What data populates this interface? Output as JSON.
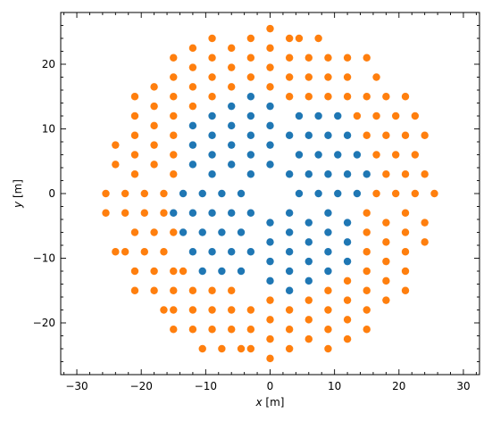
{
  "chart_data": {
    "type": "scatter",
    "title": "",
    "xlabel": "x [m]",
    "ylabel": "y [m]",
    "xlim": [
      -32.5,
      32.5
    ],
    "ylim": [
      -28,
      28
    ],
    "xticks": [
      -30,
      -20,
      -10,
      0,
      10,
      20,
      30
    ],
    "yticks": [
      -20,
      -10,
      0,
      10,
      20
    ],
    "grid": false,
    "legend": "none",
    "series": [
      {
        "color": "#1f77b4",
        "points": [
          [
            0,
            4.5
          ],
          [
            0,
            7.5
          ],
          [
            0,
            10.5
          ],
          [
            0,
            13.5
          ],
          [
            -3,
            3
          ],
          [
            -3,
            6
          ],
          [
            -3,
            9
          ],
          [
            -3,
            12
          ],
          [
            -3,
            15
          ],
          [
            -6,
            4.5
          ],
          [
            -6,
            7.5
          ],
          [
            -6,
            10.5
          ],
          [
            -6,
            13.5
          ],
          [
            -9,
            3
          ],
          [
            -9,
            6
          ],
          [
            -9,
            9
          ],
          [
            -9,
            12
          ],
          [
            -12,
            4.5
          ],
          [
            -12,
            7.5
          ],
          [
            -12,
            10.5
          ],
          [
            3,
            3
          ],
          [
            6,
            3
          ],
          [
            9,
            3
          ],
          [
            12,
            3
          ],
          [
            15,
            3
          ],
          [
            4.5,
            0
          ],
          [
            7.5,
            0
          ],
          [
            10.5,
            0
          ],
          [
            13.5,
            0
          ],
          [
            3,
            9
          ],
          [
            6,
            9
          ],
          [
            9,
            9
          ],
          [
            12,
            9
          ],
          [
            4.5,
            6
          ],
          [
            7.5,
            6
          ],
          [
            10.5,
            6
          ],
          [
            13.5,
            6
          ],
          [
            4.5,
            12
          ],
          [
            7.5,
            12
          ],
          [
            10.5,
            12
          ],
          [
            -4.5,
            0
          ],
          [
            -7.5,
            0
          ],
          [
            -10.5,
            0
          ],
          [
            -13.5,
            0
          ],
          [
            -3,
            -3
          ],
          [
            -6,
            -3
          ],
          [
            -9,
            -3
          ],
          [
            -12,
            -3
          ],
          [
            -15,
            -3
          ],
          [
            -4.5,
            -6
          ],
          [
            -7.5,
            -6
          ],
          [
            -10.5,
            -6
          ],
          [
            -13.5,
            -6
          ],
          [
            -3,
            -9
          ],
          [
            -6,
            -9
          ],
          [
            -9,
            -9
          ],
          [
            -12,
            -9
          ],
          [
            -4.5,
            -12
          ],
          [
            -7.5,
            -12
          ],
          [
            -10.5,
            -12
          ],
          [
            0,
            -4.5
          ],
          [
            0,
            -7.5
          ],
          [
            0,
            -10.5
          ],
          [
            0,
            -13.5
          ],
          [
            3,
            -3
          ],
          [
            3,
            -6
          ],
          [
            3,
            -9
          ],
          [
            3,
            -12
          ],
          [
            3,
            -15
          ],
          [
            6,
            -4.5
          ],
          [
            6,
            -7.5
          ],
          [
            6,
            -10.5
          ],
          [
            6,
            -13.5
          ],
          [
            9,
            -3
          ],
          [
            9,
            -6
          ],
          [
            9,
            -9
          ],
          [
            9,
            -12
          ],
          [
            12,
            -4.5
          ],
          [
            12,
            -7.5
          ],
          [
            12,
            -10.5
          ]
        ]
      },
      {
        "color": "#ff7f0e",
        "points": [
          [
            0,
            16.5
          ],
          [
            0,
            19.5
          ],
          [
            0,
            22.5
          ],
          [
            0,
            25.5
          ],
          [
            -3,
            18
          ],
          [
            -3,
            21
          ],
          [
            -3,
            24
          ],
          [
            -6,
            16.5
          ],
          [
            -6,
            19.5
          ],
          [
            -6,
            22.5
          ],
          [
            -9,
            15
          ],
          [
            -9,
            18
          ],
          [
            -9,
            21
          ],
          [
            -9,
            24
          ],
          [
            -12,
            13.5
          ],
          [
            -12,
            16.5
          ],
          [
            -12,
            19.5
          ],
          [
            -12,
            22.5
          ],
          [
            -15,
            12
          ],
          [
            -15,
            15
          ],
          [
            -15,
            18
          ],
          [
            -15,
            21
          ],
          [
            -18,
            10.5
          ],
          [
            -18,
            13.5
          ],
          [
            -18,
            16.5
          ],
          [
            -21,
            12
          ],
          [
            -21,
            15
          ],
          [
            -15,
            3
          ],
          [
            -15,
            6
          ],
          [
            -15,
            9
          ],
          [
            -18,
            4.5
          ],
          [
            -18,
            7.5
          ],
          [
            -21,
            3
          ],
          [
            -21,
            6
          ],
          [
            -21,
            9
          ],
          [
            -24,
            4.5
          ],
          [
            -24,
            7.5
          ],
          [
            -16.5,
            0
          ],
          [
            -19.5,
            0
          ],
          [
            -22.5,
            0
          ],
          [
            -25.5,
            0
          ],
          [
            3,
            15
          ],
          [
            3,
            18
          ],
          [
            3,
            21
          ],
          [
            3,
            24
          ],
          [
            4.5,
            24
          ],
          [
            7.5,
            24
          ],
          [
            6,
            15
          ],
          [
            6,
            18
          ],
          [
            6,
            21
          ],
          [
            9,
            15
          ],
          [
            9,
            18
          ],
          [
            9,
            21
          ],
          [
            12,
            15
          ],
          [
            12,
            18
          ],
          [
            12,
            21
          ],
          [
            15,
            15
          ],
          [
            15,
            21
          ],
          [
            13.5,
            12
          ],
          [
            16.5,
            12
          ],
          [
            16.5,
            18
          ],
          [
            18,
            15
          ],
          [
            19.5,
            12
          ],
          [
            21,
            15
          ],
          [
            22.5,
            12
          ],
          [
            15,
            9
          ],
          [
            18,
            9
          ],
          [
            21,
            9
          ],
          [
            24,
            9
          ],
          [
            16.5,
            6
          ],
          [
            19.5,
            6
          ],
          [
            22.5,
            6
          ],
          [
            18,
            3
          ],
          [
            21,
            3
          ],
          [
            24,
            3
          ],
          [
            16.5,
            0
          ],
          [
            19.5,
            0
          ],
          [
            22.5,
            0
          ],
          [
            25.5,
            0
          ],
          [
            -16.5,
            -3
          ],
          [
            -19.5,
            -3
          ],
          [
            -22.5,
            -3
          ],
          [
            -25.5,
            -3
          ],
          [
            -15,
            -6
          ],
          [
            -18,
            -6
          ],
          [
            -21,
            -6
          ],
          [
            -16.5,
            -9
          ],
          [
            -19.5,
            -9
          ],
          [
            -22.5,
            -9
          ],
          [
            -15,
            -12
          ],
          [
            -18,
            -12
          ],
          [
            -21,
            -12
          ],
          [
            -13.5,
            -12
          ],
          [
            -24,
            -9
          ],
          [
            -3,
            -18
          ],
          [
            -3,
            -21
          ],
          [
            -3,
            -24
          ],
          [
            -6,
            -15
          ],
          [
            -6,
            -18
          ],
          [
            -6,
            -21
          ],
          [
            -9,
            -15
          ],
          [
            -9,
            -18
          ],
          [
            -9,
            -21
          ],
          [
            -12,
            -15
          ],
          [
            -12,
            -18
          ],
          [
            -12,
            -21
          ],
          [
            -15,
            -15
          ],
          [
            -15,
            -18
          ],
          [
            -15,
            -21
          ],
          [
            -18,
            -15
          ],
          [
            -21,
            -15
          ],
          [
            -4.5,
            -24
          ],
          [
            -7.5,
            -24
          ],
          [
            -10.5,
            -24
          ],
          [
            -16.5,
            -18
          ],
          [
            0,
            -16.5
          ],
          [
            0,
            -19.5
          ],
          [
            0,
            -22.5
          ],
          [
            0,
            -25.5
          ],
          [
            3,
            -18
          ],
          [
            3,
            -21
          ],
          [
            3,
            -24
          ],
          [
            6,
            -16.5
          ],
          [
            6,
            -19.5
          ],
          [
            6,
            -22.5
          ],
          [
            9,
            -15
          ],
          [
            9,
            -18
          ],
          [
            9,
            -21
          ],
          [
            9,
            -24
          ],
          [
            12,
            -13.5
          ],
          [
            12,
            -16.5
          ],
          [
            12,
            -19.5
          ],
          [
            12,
            -22.5
          ],
          [
            15,
            -3
          ],
          [
            15,
            -6
          ],
          [
            15,
            -9
          ],
          [
            15,
            -12
          ],
          [
            15,
            -15
          ],
          [
            15,
            -18
          ],
          [
            15,
            -21
          ],
          [
            18,
            -4.5
          ],
          [
            18,
            -7.5
          ],
          [
            18,
            -10.5
          ],
          [
            18,
            -13.5
          ],
          [
            18,
            -16.5
          ],
          [
            21,
            -3
          ],
          [
            21,
            -6
          ],
          [
            21,
            -9
          ],
          [
            21,
            -12
          ],
          [
            21,
            -15
          ],
          [
            24,
            -4.5
          ],
          [
            24,
            -7.5
          ]
        ]
      }
    ]
  }
}
